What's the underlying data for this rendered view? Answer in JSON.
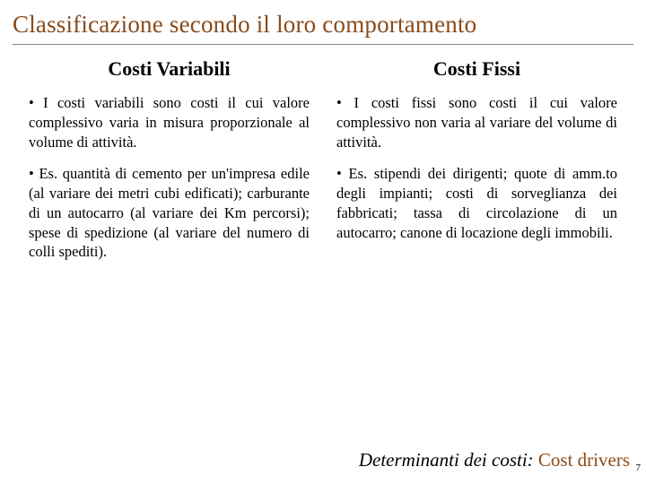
{
  "title": "Classificazione secondo il loro comportamento",
  "columns": {
    "left": {
      "heading": "Costi Variabili",
      "b1": "• I costi variabili sono costi il cui valore complessivo varia in misura proporzionale al volume di attività.",
      "b2": "• Es. quantità di cemento per un'impresa edile (al variare dei metri cubi edificati); carburante di un autocarro (al variare dei Km percorsi); spese di spedizione (al variare del numero di colli spediti)."
    },
    "right": {
      "heading": "Costi Fissi",
      "b1": "• I costi fissi sono costi il cui valore complessivo non varia al variare del volume di attività.",
      "b2": "• Es. stipendi dei dirigenti; quote di amm.to degli impianti; costi di sorveglianza dei fabbricati; tassa di circolazione di un autocarro; canone di locazione degli immobili."
    }
  },
  "footer": {
    "prefix": "Determinanti dei costi",
    "sep": ": ",
    "accent": "Cost drivers"
  },
  "page_number": "7",
  "colors": {
    "title_color": "#8a4b1a",
    "accent_color": "#8a4b1a",
    "text_color": "#000000",
    "background": "#ffffff",
    "hr_color": "#888888"
  }
}
